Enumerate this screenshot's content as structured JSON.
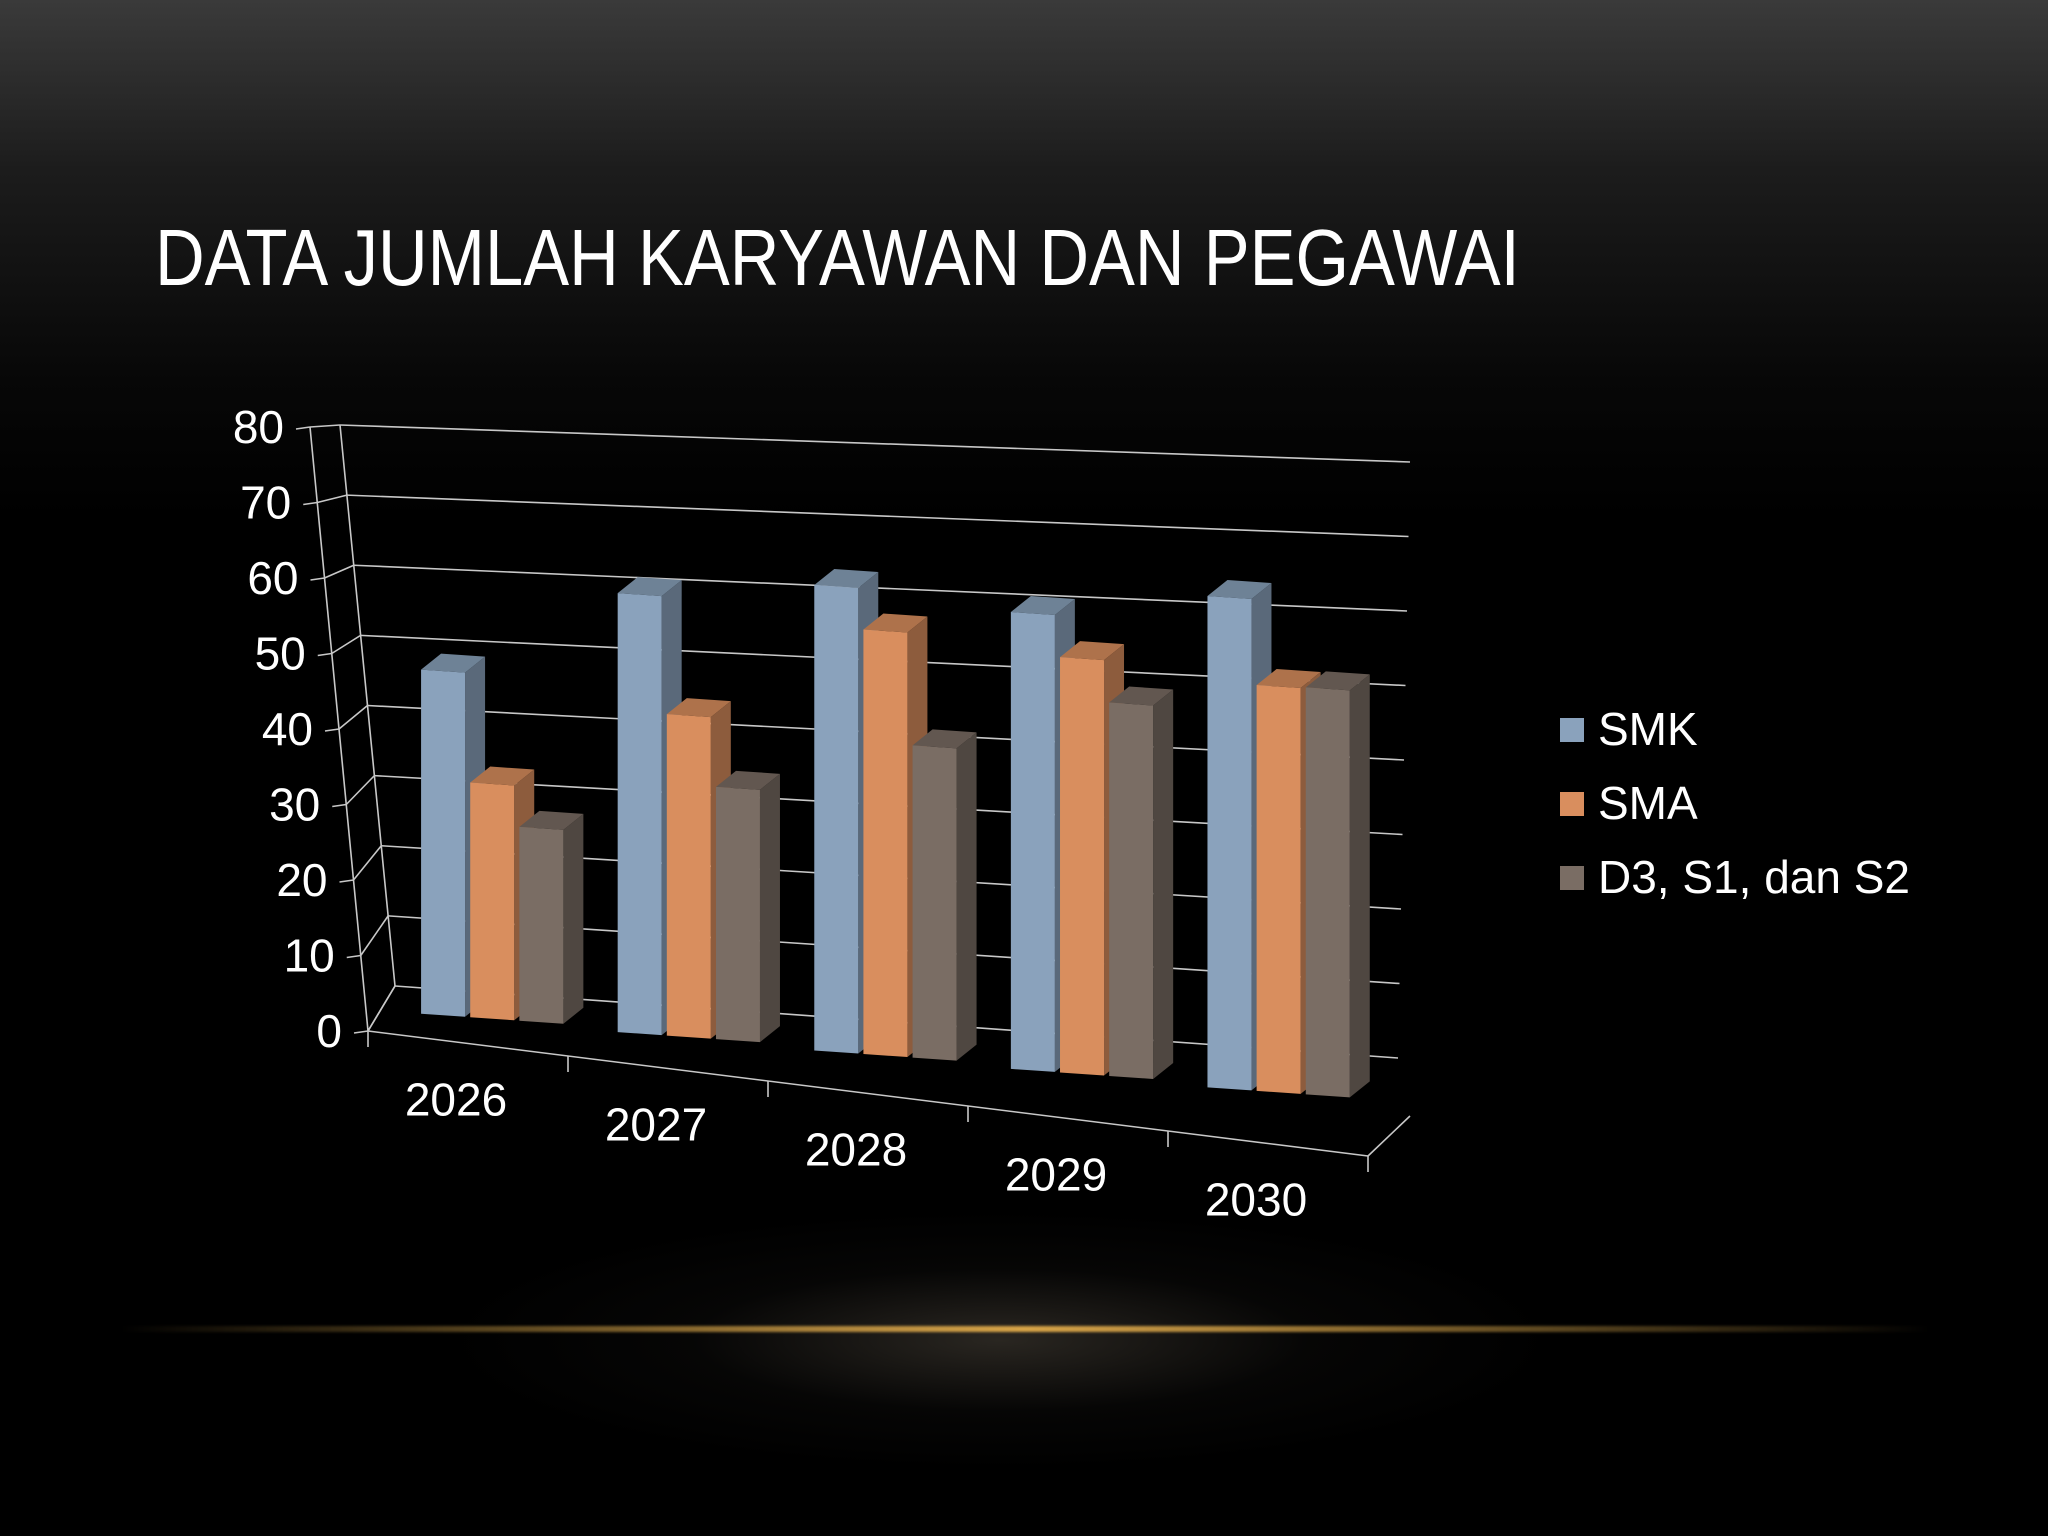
{
  "slide": {
    "title": "DATA JUMLAH KARYAWAN DAN PEGAWAI"
  },
  "chart_data": {
    "type": "bar",
    "title": "",
    "categories": [
      "2026",
      "2027",
      "2028",
      "2029",
      "2030"
    ],
    "series": [
      {
        "name": "SMK",
        "values": [
          50,
          63,
          66,
          64,
          68
        ],
        "color": "#8aa2bc"
      },
      {
        "name": "SMA",
        "values": [
          34,
          46,
          60,
          58,
          56
        ],
        "color": "#d98e5e"
      },
      {
        "name": "D3, S1, dan S2",
        "values": [
          28,
          36,
          44,
          52,
          56
        ],
        "color": "#7a6d64"
      }
    ],
    "y_ticks": [
      "0",
      "10",
      "20",
      "30",
      "40",
      "50",
      "60",
      "70",
      "80"
    ],
    "ylim": [
      0,
      80
    ],
    "grid": true,
    "legend_position": "right",
    "style": "3d-clustered-column"
  }
}
